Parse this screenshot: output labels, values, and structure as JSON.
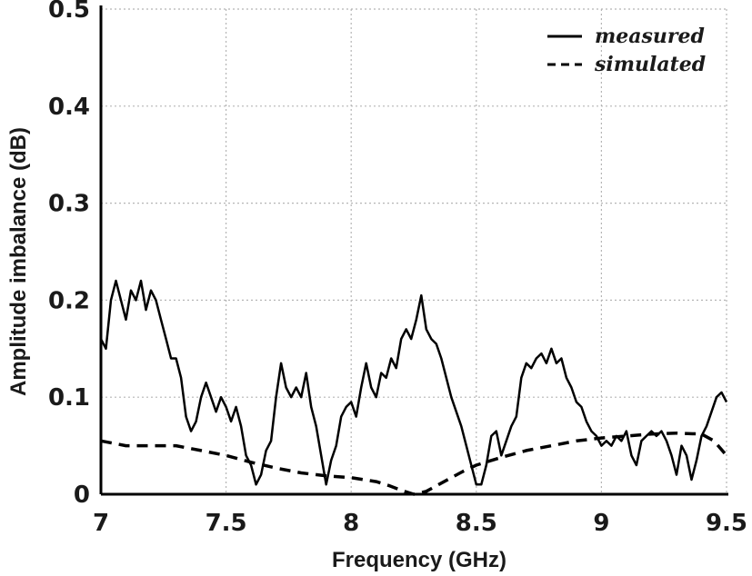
{
  "chart_data": {
    "type": "line",
    "title": "",
    "xlabel": "Frequency (GHz)",
    "ylabel": "Amplitude imbalance (dB)",
    "xlim": [
      7,
      9.5
    ],
    "ylim": [
      0,
      0.5
    ],
    "xticks": [
      "7",
      "7.5",
      "8",
      "8.5",
      "9",
      "9.5"
    ],
    "yticks": [
      "0",
      "0.1",
      "0.2",
      "0.3",
      "0.4",
      "0.5"
    ],
    "grid": "dotted, both axes",
    "legend_position": "top-right",
    "series": [
      {
        "name": "measured",
        "style": "solid",
        "color": "#000000",
        "x": [
          7.0,
          7.02,
          7.04,
          7.06,
          7.08,
          7.1,
          7.12,
          7.14,
          7.16,
          7.18,
          7.2,
          7.22,
          7.24,
          7.26,
          7.28,
          7.3,
          7.32,
          7.34,
          7.36,
          7.38,
          7.4,
          7.42,
          7.44,
          7.46,
          7.48,
          7.5,
          7.52,
          7.54,
          7.56,
          7.58,
          7.6,
          7.62,
          7.64,
          7.66,
          7.68,
          7.7,
          7.72,
          7.74,
          7.76,
          7.78,
          7.8,
          7.82,
          7.84,
          7.86,
          7.88,
          7.9,
          7.92,
          7.94,
          7.96,
          7.98,
          8.0,
          8.02,
          8.04,
          8.06,
          8.08,
          8.1,
          8.12,
          8.14,
          8.16,
          8.18,
          8.2,
          8.22,
          8.24,
          8.26,
          8.28,
          8.3,
          8.32,
          8.34,
          8.36,
          8.38,
          8.4,
          8.42,
          8.44,
          8.46,
          8.48,
          8.5,
          8.52,
          8.54,
          8.56,
          8.58,
          8.6,
          8.62,
          8.64,
          8.66,
          8.68,
          8.7,
          8.72,
          8.74,
          8.76,
          8.78,
          8.8,
          8.82,
          8.84,
          8.86,
          8.88,
          8.9,
          8.92,
          8.94,
          8.96,
          8.98,
          9.0,
          9.02,
          9.04,
          9.06,
          9.08,
          9.1,
          9.12,
          9.14,
          9.16,
          9.18,
          9.2,
          9.22,
          9.24,
          9.26,
          9.28,
          9.3,
          9.32,
          9.34,
          9.36,
          9.38,
          9.4,
          9.42,
          9.44,
          9.46,
          9.48,
          9.5
        ],
        "y": [
          0.16,
          0.15,
          0.2,
          0.22,
          0.2,
          0.18,
          0.21,
          0.2,
          0.22,
          0.19,
          0.21,
          0.2,
          0.18,
          0.16,
          0.14,
          0.14,
          0.12,
          0.08,
          0.065,
          0.075,
          0.1,
          0.115,
          0.1,
          0.085,
          0.1,
          0.09,
          0.075,
          0.09,
          0.07,
          0.04,
          0.03,
          0.01,
          0.02,
          0.045,
          0.055,
          0.1,
          0.135,
          0.11,
          0.1,
          0.11,
          0.1,
          0.125,
          0.09,
          0.07,
          0.04,
          0.01,
          0.035,
          0.05,
          0.08,
          0.09,
          0.095,
          0.08,
          0.11,
          0.135,
          0.11,
          0.1,
          0.125,
          0.12,
          0.14,
          0.13,
          0.16,
          0.17,
          0.16,
          0.18,
          0.205,
          0.17,
          0.16,
          0.155,
          0.14,
          0.12,
          0.1,
          0.085,
          0.07,
          0.05,
          0.03,
          0.01,
          0.01,
          0.03,
          0.06,
          0.065,
          0.04,
          0.055,
          0.07,
          0.08,
          0.12,
          0.135,
          0.13,
          0.14,
          0.145,
          0.135,
          0.15,
          0.135,
          0.14,
          0.12,
          0.11,
          0.095,
          0.09,
          0.075,
          0.065,
          0.06,
          0.05,
          0.055,
          0.05,
          0.06,
          0.055,
          0.065,
          0.04,
          0.03,
          0.055,
          0.06,
          0.065,
          0.06,
          0.065,
          0.055,
          0.04,
          0.02,
          0.05,
          0.04,
          0.015,
          0.035,
          0.06,
          0.07,
          0.085,
          0.1,
          0.105,
          0.095
        ]
      },
      {
        "name": "simulated",
        "style": "dashed",
        "color": "#000000",
        "x": [
          7.0,
          7.1,
          7.2,
          7.3,
          7.4,
          7.5,
          7.6,
          7.7,
          7.8,
          7.9,
          8.0,
          8.1,
          8.15,
          8.2,
          8.25,
          8.3,
          8.35,
          8.4,
          8.45,
          8.5,
          8.6,
          8.7,
          8.8,
          8.9,
          9.0,
          9.1,
          9.2,
          9.3,
          9.4,
          9.45,
          9.5
        ],
        "y": [
          0.055,
          0.05,
          0.05,
          0.05,
          0.045,
          0.04,
          0.033,
          0.027,
          0.022,
          0.019,
          0.017,
          0.013,
          0.009,
          0.004,
          0.0,
          0.003,
          0.01,
          0.017,
          0.024,
          0.03,
          0.038,
          0.045,
          0.05,
          0.055,
          0.058,
          0.06,
          0.062,
          0.063,
          0.062,
          0.055,
          0.04
        ]
      }
    ]
  }
}
